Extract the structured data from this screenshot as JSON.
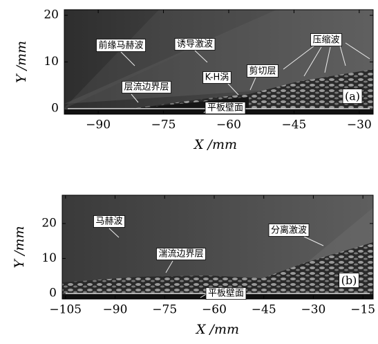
{
  "panels": [
    {
      "tag": "(a)",
      "x_label": "X /mm",
      "y_label": "Y /mm",
      "xlim": [
        -97.8,
        -26.8
      ],
      "ylim": [
        -1.2,
        21.2
      ],
      "xticks": [
        {
          "value": -90,
          "label": "−90"
        },
        {
          "value": -75,
          "label": "−75"
        },
        {
          "value": -60,
          "label": "−60"
        },
        {
          "value": -45,
          "label": "−45"
        },
        {
          "value": -30,
          "label": "−30"
        }
      ],
      "yticks": [
        0,
        10,
        20
      ],
      "annotations": [
        "前缘马赫波",
        "诱导激波",
        "压缩波",
        "层流边界层",
        "K-H涡",
        "剪切层",
        "平板壁面"
      ]
    },
    {
      "tag": "(b)",
      "x_label": "X /mm",
      "y_label": "Y /mm",
      "xlim": [
        -106,
        -11.9
      ],
      "ylim": [
        -1.6,
        28.1
      ],
      "xticks": [
        {
          "value": -105,
          "label": "−105"
        },
        {
          "value": -90,
          "label": "−90"
        },
        {
          "value": -75,
          "label": "−75"
        },
        {
          "value": -60,
          "label": "−60"
        },
        {
          "value": -45,
          "label": "−45"
        },
        {
          "value": -30,
          "label": "−30"
        },
        {
          "value": -15,
          "label": "−15"
        }
      ],
      "yticks": [
        0,
        10,
        20
      ],
      "annotations": [
        "马赫波",
        "分离激波",
        "湍流边界层",
        "平板壁面"
      ]
    }
  ]
}
